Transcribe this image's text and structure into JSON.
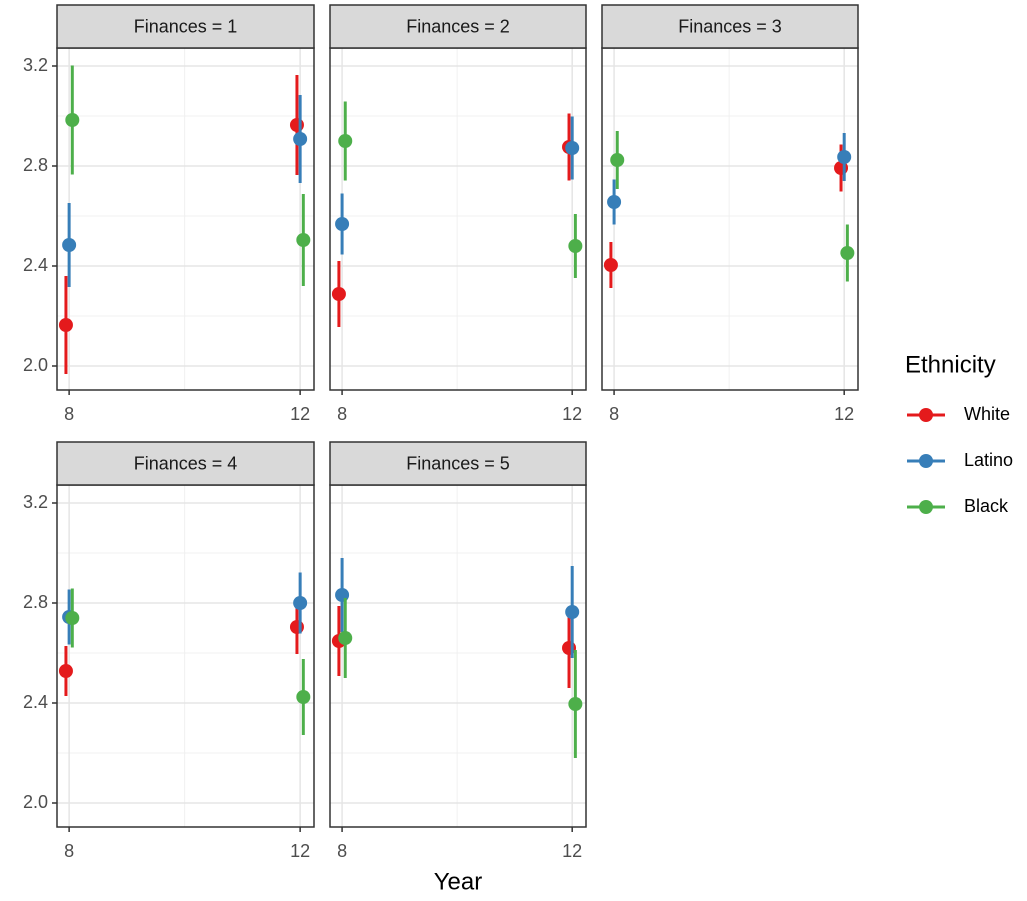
{
  "x_label": "Year",
  "legend_title": "Ethnicity",
  "chart_data": [
    {
      "type": "pointrange",
      "title": "Finances = 1",
      "x": [
        8,
        12
      ],
      "xlim": [
        7.79,
        12.24
      ],
      "ylim": [
        1.904,
        3.272
      ],
      "xticks": [
        8,
        12
      ],
      "minor_xticks": [
        10
      ],
      "yticks": [
        {
          "value": 2,
          "label": "2.0"
        },
        2.4,
        2.8,
        3.2
      ],
      "minor_yticks": [
        2.2,
        2.6,
        3.0
      ],
      "grid": true,
      "series": [
        {
          "name": "White",
          "color": "#e41a1c",
          "values": [
            2.164,
            2.964
          ],
          "errors": [
            0.196,
            0.2
          ]
        },
        {
          "name": "Latino",
          "color": "#377eb8",
          "values": [
            2.484,
            2.908
          ],
          "errors": [
            0.168,
            0.176
          ]
        },
        {
          "name": "Black",
          "color": "#4daf4a",
          "values": [
            2.984,
            2.504
          ],
          "errors": [
            0.218,
            0.184
          ]
        }
      ]
    },
    {
      "type": "pointrange",
      "title": "Finances = 2",
      "x": [
        8,
        12
      ],
      "xlim": [
        7.79,
        12.24
      ],
      "ylim": [
        1.904,
        3.272
      ],
      "xticks": [
        8,
        12
      ],
      "minor_xticks": [
        10
      ],
      "yticks": [
        {
          "value": 2,
          "label": "2.0"
        },
        2.4,
        2.8,
        3.2
      ],
      "minor_yticks": [
        2.2,
        2.6,
        3.0
      ],
      "grid": true,
      "series": [
        {
          "name": "White",
          "color": "#e41a1c",
          "values": [
            2.288,
            2.876
          ],
          "errors": [
            0.132,
            0.134
          ]
        },
        {
          "name": "Latino",
          "color": "#377eb8",
          "values": [
            2.568,
            2.872
          ],
          "errors": [
            0.122,
            0.126
          ]
        },
        {
          "name": "Black",
          "color": "#4daf4a",
          "values": [
            2.9,
            2.48
          ],
          "errors": [
            0.158,
            0.128
          ]
        }
      ]
    },
    {
      "type": "pointrange",
      "title": "Finances = 3",
      "x": [
        8,
        12
      ],
      "xlim": [
        7.79,
        12.24
      ],
      "ylim": [
        1.904,
        3.272
      ],
      "xticks": [
        8,
        12
      ],
      "minor_xticks": [
        10
      ],
      "yticks": [
        {
          "value": 2,
          "label": "2.0"
        },
        2.4,
        2.8,
        3.2
      ],
      "minor_yticks": [
        2.2,
        2.6,
        3.0
      ],
      "grid": true,
      "series": [
        {
          "name": "White",
          "color": "#e41a1c",
          "values": [
            2.404,
            2.792
          ],
          "errors": [
            0.092,
            0.094
          ]
        },
        {
          "name": "Latino",
          "color": "#377eb8",
          "values": [
            2.656,
            2.836
          ],
          "errors": [
            0.09,
            0.096
          ]
        },
        {
          "name": "Black",
          "color": "#4daf4a",
          "values": [
            2.824,
            2.452
          ],
          "errors": [
            0.116,
            0.114
          ]
        }
      ]
    },
    {
      "type": "pointrange",
      "title": "Finances = 4",
      "x": [
        8,
        12
      ],
      "xlim": [
        7.79,
        12.24
      ],
      "ylim": [
        1.904,
        3.272
      ],
      "xticks": [
        8,
        12
      ],
      "minor_xticks": [
        10
      ],
      "yticks": [
        {
          "value": 2,
          "label": "2.0"
        },
        2.4,
        2.8,
        3.2
      ],
      "minor_yticks": [
        2.2,
        2.6,
        3.0
      ],
      "grid": true,
      "series": [
        {
          "name": "White",
          "color": "#e41a1c",
          "values": [
            2.528,
            2.704
          ],
          "errors": [
            0.1,
            0.108
          ]
        },
        {
          "name": "Latino",
          "color": "#377eb8",
          "values": [
            2.744,
            2.8
          ],
          "errors": [
            0.11,
            0.122
          ]
        },
        {
          "name": "Black",
          "color": "#4daf4a",
          "values": [
            2.74,
            2.424
          ],
          "errors": [
            0.118,
            0.152
          ]
        }
      ]
    },
    {
      "type": "pointrange",
      "title": "Finances = 5",
      "x": [
        8,
        12
      ],
      "xlim": [
        7.79,
        12.24
      ],
      "ylim": [
        1.904,
        3.272
      ],
      "xticks": [
        8,
        12
      ],
      "minor_xticks": [
        10
      ],
      "yticks": [
        {
          "value": 2,
          "label": "2.0"
        },
        2.4,
        2.8,
        3.2
      ],
      "minor_yticks": [
        2.2,
        2.6,
        3.0
      ],
      "grid": true,
      "series": [
        {
          "name": "White",
          "color": "#e41a1c",
          "values": [
            2.648,
            2.62
          ],
          "errors": [
            0.14,
            0.16
          ]
        },
        {
          "name": "Latino",
          "color": "#377eb8",
          "values": [
            2.832,
            2.764
          ],
          "errors": [
            0.148,
            0.184
          ]
        },
        {
          "name": "Black",
          "color": "#4daf4a",
          "values": [
            2.66,
            2.396
          ],
          "errors": [
            0.16,
            0.216
          ]
        }
      ]
    }
  ]
}
